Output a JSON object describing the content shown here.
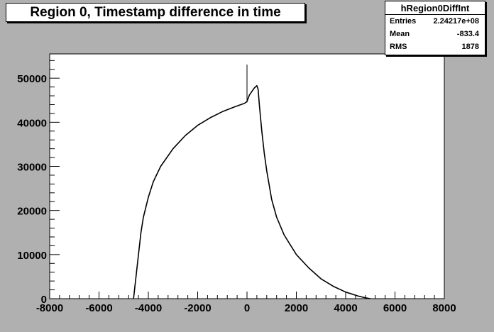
{
  "title": "Region 0, Timestamp difference in time",
  "stats": {
    "name": "hRegion0DiffInt",
    "rows": [
      {
        "label": "Entries",
        "value": "2.24217e+08"
      },
      {
        "label": "Mean",
        "value": "-833.4"
      },
      {
        "label": "RMS",
        "value": "1878"
      }
    ]
  },
  "colors": {
    "background": "#b0b0b0",
    "frame": "#ffffff",
    "line": "#000000"
  },
  "chart_data": {
    "type": "line",
    "title": "Region 0, Timestamp difference in time",
    "xlabel": "",
    "ylabel": "",
    "xlim": [
      -8000,
      8000
    ],
    "ylim": [
      0,
      55500
    ],
    "x_ticks": [
      -8000,
      -6000,
      -4000,
      -2000,
      0,
      2000,
      4000,
      6000,
      8000
    ],
    "x_tick_labels": [
      "-8000",
      "-6000",
      "-4000",
      "-2000",
      "0",
      "2000",
      "4000",
      "6000",
      "8000"
    ],
    "y_ticks": [
      0,
      10000,
      20000,
      30000,
      40000,
      50000
    ],
    "y_tick_labels": [
      "0",
      "10000",
      "20000",
      "30000",
      "40000",
      "50000"
    ],
    "grid": false,
    "series": [
      {
        "x": [
          -4600,
          -4500,
          -4400,
          -4300,
          -4200,
          -4000,
          -3800,
          -3500,
          -3000,
          -2500,
          -2000,
          -1500,
          -1000,
          -500,
          -100,
          0,
          50,
          100,
          200,
          300,
          400,
          450,
          500,
          600,
          700,
          800,
          1000,
          1200,
          1500,
          2000,
          2500,
          3000,
          3500,
          4000,
          4500,
          4800,
          5000
        ],
        "y": [
          0,
          5000,
          10000,
          15000,
          18500,
          23000,
          26500,
          30000,
          34000,
          37000,
          39300,
          41000,
          42400,
          43500,
          44300,
          44700,
          45500,
          46200,
          47000,
          47800,
          48300,
          47500,
          44000,
          38000,
          33000,
          29000,
          22500,
          18500,
          14500,
          10000,
          7000,
          4500,
          2800,
          1500,
          600,
          200,
          0
        ]
      },
      {
        "x": [
          0,
          0,
          0
        ],
        "y": [
          44500,
          53000,
          44800
        ]
      }
    ]
  }
}
